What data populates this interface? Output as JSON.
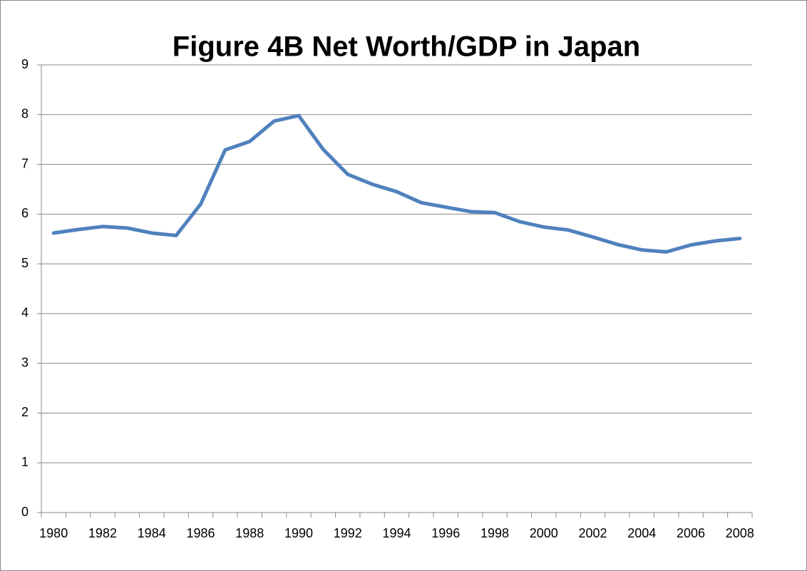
{
  "chart_data": {
    "type": "line",
    "title": "Figure 4B   Net Worth/GDP in Japan",
    "categories": [
      "1980",
      null,
      "1982",
      null,
      "1984",
      null,
      "1986",
      null,
      "1988",
      null,
      "1990",
      null,
      "1992",
      null,
      "1994",
      null,
      "1996",
      null,
      "1998",
      null,
      "2000",
      null,
      "2002",
      null,
      "2004",
      null,
      "2006",
      null,
      "2008"
    ],
    "series": [
      {
        "color": "#4f81bd",
        "values": [
          5.62,
          5.69,
          5.75,
          5.72,
          5.62,
          5.57,
          6.2,
          7.29,
          7.46,
          7.87,
          7.98,
          7.3,
          6.8,
          6.6,
          6.45,
          6.23,
          6.14,
          6.05,
          6.03,
          5.85,
          5.74,
          5.68,
          5.54,
          5.39,
          5.28,
          5.24,
          5.38,
          5.46,
          5.51
        ]
      }
    ],
    "ylim": [
      0,
      9
    ],
    "yticks": [
      0,
      1,
      2,
      3,
      4,
      5,
      6,
      7,
      8,
      9
    ],
    "grid": true
  }
}
